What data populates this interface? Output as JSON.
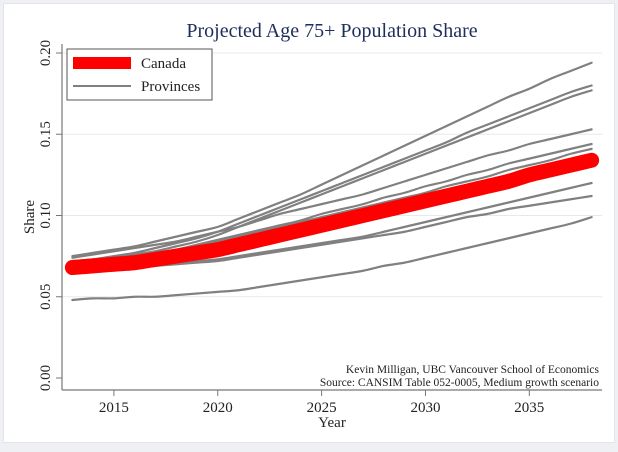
{
  "chart_data": {
    "type": "line",
    "title": "Projected Age 75+ Population Share",
    "xlabel": "Year",
    "ylabel": "Share",
    "xlim": [
      2012.5,
      2038.5
    ],
    "ylim": [
      0.0,
      0.2
    ],
    "x_ticks": [
      2015,
      2020,
      2025,
      2030,
      2035
    ],
    "x_tick_labels": [
      "2015",
      "2020",
      "2025",
      "2030",
      "2035"
    ],
    "y_ticks": [
      0.0,
      0.05,
      0.1,
      0.15,
      0.2
    ],
    "y_tick_labels": [
      "0.00",
      "0.05",
      "0.10",
      "0.15",
      "0.20"
    ],
    "grid": "horizontal",
    "legend": {
      "position": "top-left",
      "entries": [
        {
          "label": "Canada",
          "color": "#ff0000",
          "style": "thick"
        },
        {
          "label": "Provinces",
          "color": "#808080",
          "style": "thin"
        }
      ]
    },
    "annotations": [
      "Kevin Milligan, UBC Vancouver School of Economics",
      "Source: CANSIM Table 052-0005, Medium growth scenario"
    ],
    "x": [
      2013,
      2014,
      2015,
      2016,
      2017,
      2018,
      2019,
      2020,
      2021,
      2022,
      2023,
      2024,
      2025,
      2026,
      2027,
      2028,
      2029,
      2030,
      2031,
      2032,
      2033,
      2034,
      2035,
      2036,
      2037,
      2038
    ],
    "series": [
      {
        "name": "Canada",
        "color": "#ff0000",
        "values": [
          0.068,
          0.069,
          0.07,
          0.071,
          0.073,
          0.075,
          0.077,
          0.079,
          0.082,
          0.085,
          0.088,
          0.091,
          0.094,
          0.097,
          0.1,
          0.103,
          0.106,
          0.109,
          0.112,
          0.115,
          0.118,
          0.121,
          0.125,
          0.128,
          0.131,
          0.134
        ]
      },
      {
        "name": "Province 1",
        "color": "#808080",
        "values": [
          0.075,
          0.077,
          0.079,
          0.081,
          0.084,
          0.087,
          0.09,
          0.093,
          0.098,
          0.103,
          0.108,
          0.113,
          0.119,
          0.125,
          0.131,
          0.137,
          0.143,
          0.149,
          0.155,
          0.161,
          0.167,
          0.173,
          0.178,
          0.184,
          0.189,
          0.194
        ]
      },
      {
        "name": "Province 2",
        "color": "#808080",
        "values": [
          0.072,
          0.073,
          0.075,
          0.077,
          0.08,
          0.083,
          0.086,
          0.09,
          0.095,
          0.1,
          0.105,
          0.11,
          0.115,
          0.12,
          0.125,
          0.13,
          0.135,
          0.14,
          0.145,
          0.151,
          0.156,
          0.161,
          0.166,
          0.171,
          0.176,
          0.18
        ]
      },
      {
        "name": "Province 3",
        "color": "#808080",
        "values": [
          0.071,
          0.072,
          0.074,
          0.076,
          0.078,
          0.081,
          0.084,
          0.088,
          0.093,
          0.098,
          0.103,
          0.108,
          0.113,
          0.118,
          0.123,
          0.128,
          0.133,
          0.138,
          0.143,
          0.148,
          0.153,
          0.158,
          0.163,
          0.168,
          0.173,
          0.177
        ]
      },
      {
        "name": "Province 4",
        "color": "#808080",
        "values": [
          0.074,
          0.076,
          0.078,
          0.08,
          0.082,
          0.084,
          0.087,
          0.09,
          0.093,
          0.097,
          0.101,
          0.104,
          0.107,
          0.11,
          0.113,
          0.117,
          0.121,
          0.125,
          0.129,
          0.133,
          0.137,
          0.14,
          0.144,
          0.147,
          0.15,
          0.153
        ]
      },
      {
        "name": "Province 5",
        "color": "#808080",
        "values": [
          0.071,
          0.072,
          0.074,
          0.075,
          0.077,
          0.079,
          0.082,
          0.085,
          0.088,
          0.091,
          0.094,
          0.097,
          0.101,
          0.104,
          0.107,
          0.111,
          0.114,
          0.118,
          0.121,
          0.125,
          0.128,
          0.132,
          0.135,
          0.138,
          0.141,
          0.144
        ]
      },
      {
        "name": "Province 6",
        "color": "#808080",
        "values": [
          0.07,
          0.071,
          0.073,
          0.074,
          0.076,
          0.078,
          0.081,
          0.084,
          0.087,
          0.09,
          0.093,
          0.096,
          0.099,
          0.102,
          0.105,
          0.108,
          0.111,
          0.114,
          0.118,
          0.121,
          0.124,
          0.128,
          0.131,
          0.134,
          0.138,
          0.141
        ]
      },
      {
        "name": "Province 7",
        "color": "#808080",
        "values": [
          0.068,
          0.068,
          0.069,
          0.069,
          0.07,
          0.071,
          0.072,
          0.073,
          0.075,
          0.077,
          0.079,
          0.081,
          0.083,
          0.085,
          0.087,
          0.09,
          0.093,
          0.096,
          0.099,
          0.102,
          0.105,
          0.108,
          0.111,
          0.114,
          0.117,
          0.12
        ]
      },
      {
        "name": "Province 8",
        "color": "#808080",
        "values": [
          0.067,
          0.067,
          0.068,
          0.068,
          0.069,
          0.07,
          0.071,
          0.072,
          0.074,
          0.076,
          0.078,
          0.08,
          0.082,
          0.084,
          0.086,
          0.088,
          0.09,
          0.093,
          0.096,
          0.099,
          0.101,
          0.104,
          0.106,
          0.108,
          0.11,
          0.112
        ]
      },
      {
        "name": "Province 9",
        "color": "#808080",
        "values": [
          0.048,
          0.049,
          0.049,
          0.05,
          0.05,
          0.051,
          0.052,
          0.053,
          0.054,
          0.056,
          0.058,
          0.06,
          0.062,
          0.064,
          0.066,
          0.069,
          0.071,
          0.074,
          0.077,
          0.08,
          0.083,
          0.086,
          0.089,
          0.092,
          0.095,
          0.099
        ]
      }
    ]
  }
}
